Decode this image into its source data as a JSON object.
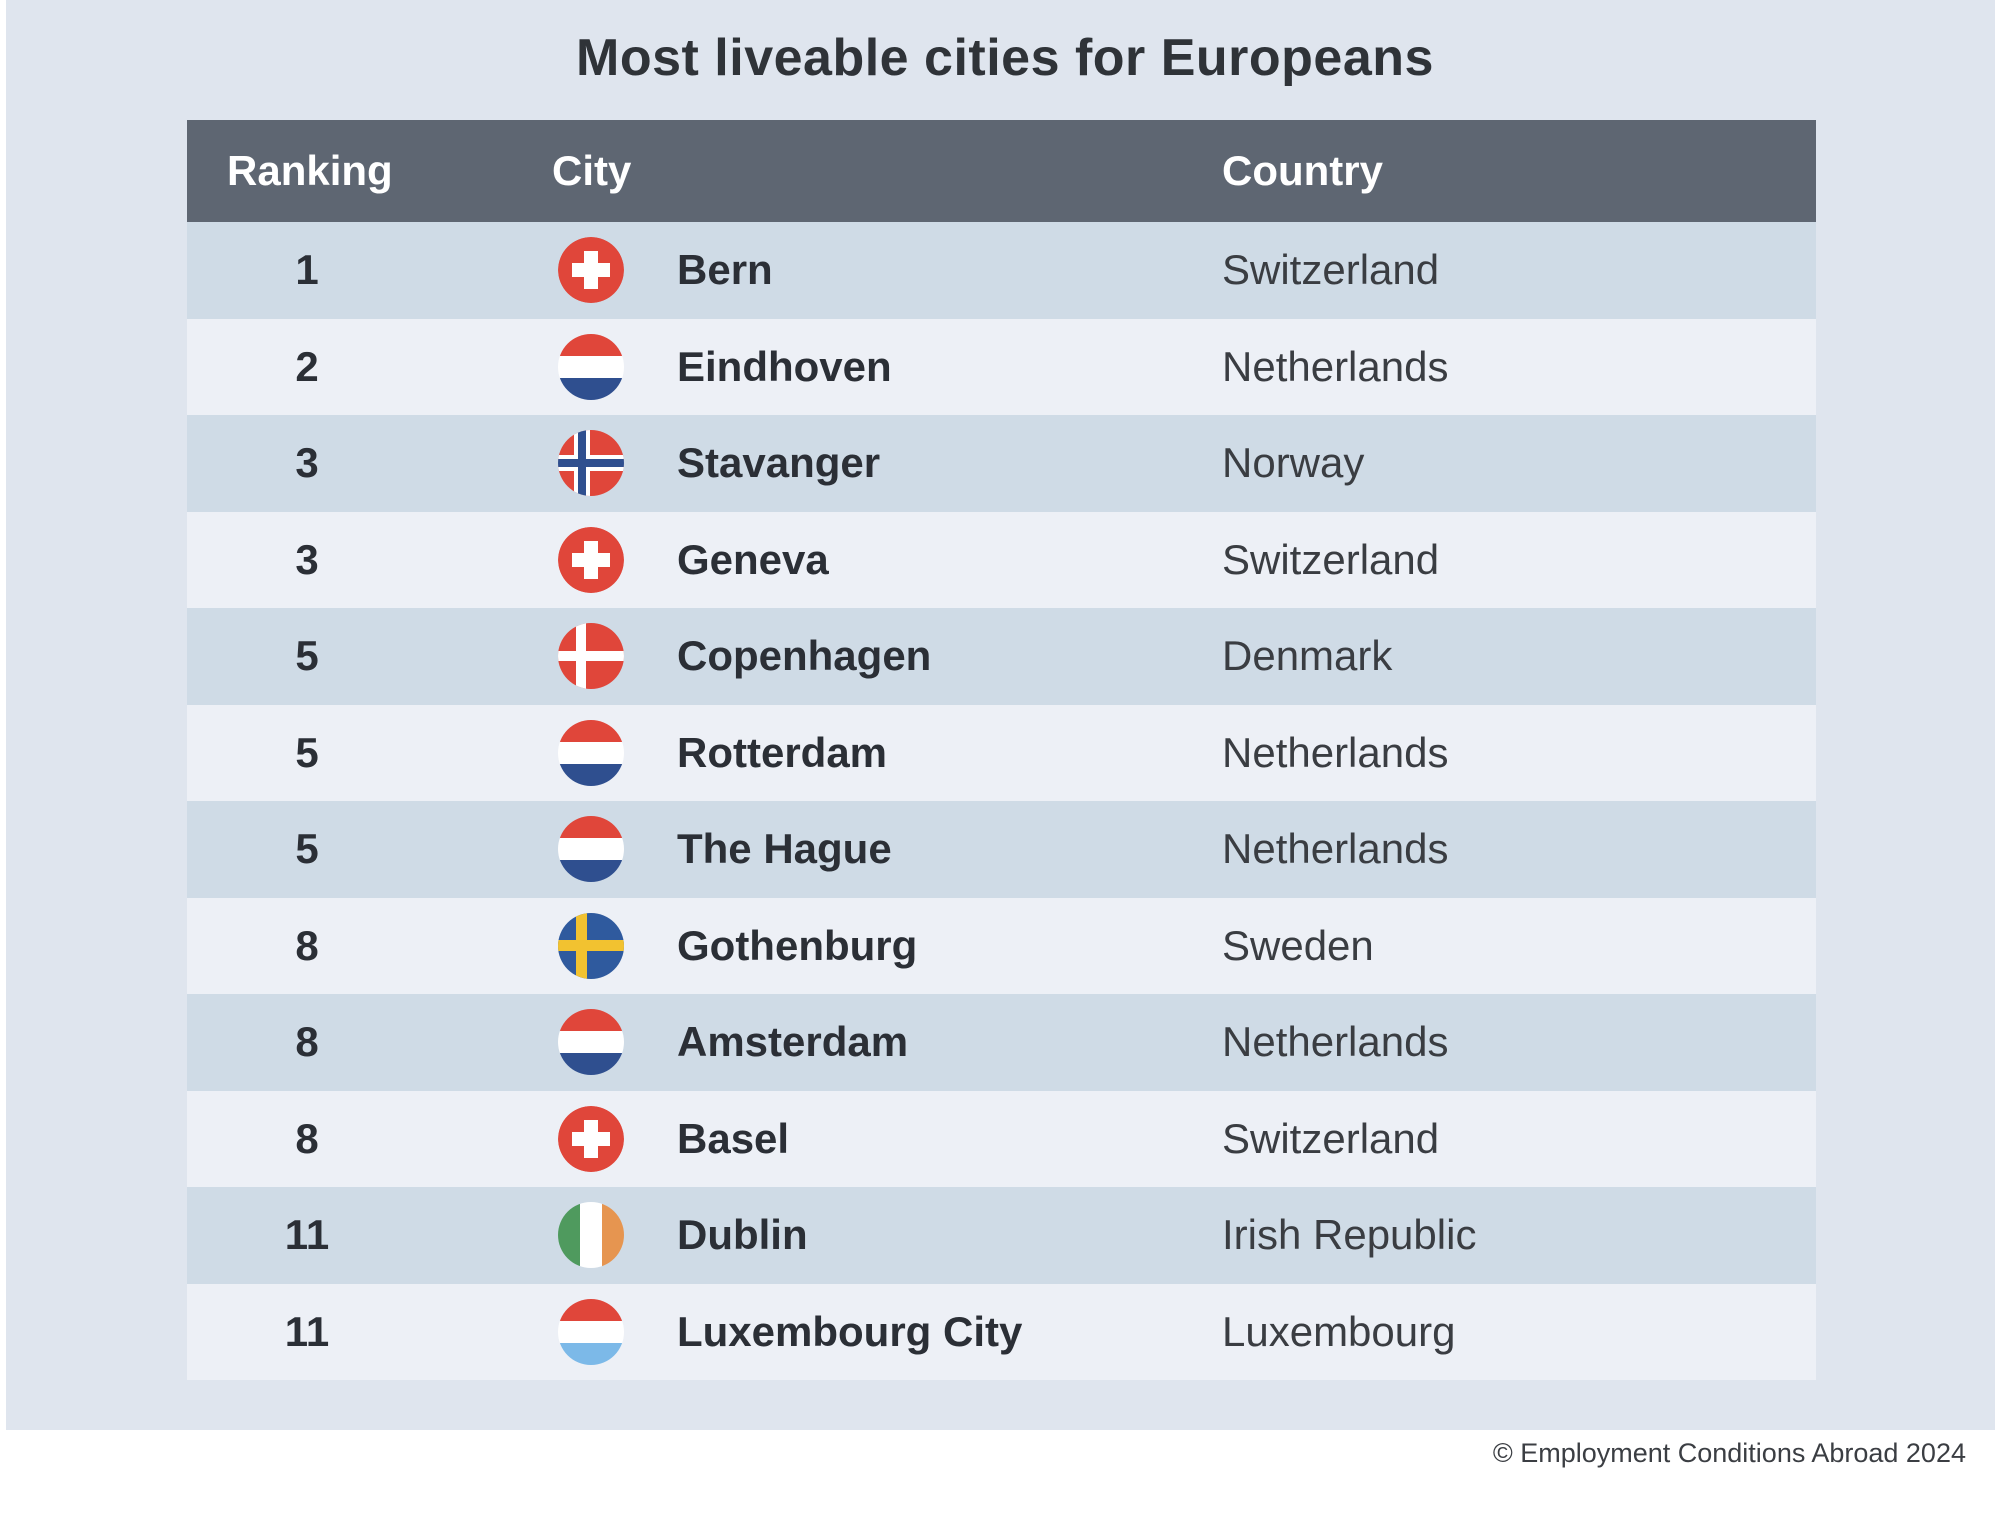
{
  "chart_data": {
    "type": "table",
    "title": "Most liveable cities for Europeans",
    "columns": [
      "Ranking",
      "City",
      "Country"
    ],
    "rows": [
      {
        "rank": "1",
        "city": "Bern",
        "country": "Switzerland",
        "flag": "switzerland-flag-icon"
      },
      {
        "rank": "2",
        "city": "Eindhoven",
        "country": "Netherlands",
        "flag": "netherlands-flag-icon"
      },
      {
        "rank": "3",
        "city": "Stavanger",
        "country": "Norway",
        "flag": "norway-flag-icon"
      },
      {
        "rank": "3",
        "city": "Geneva",
        "country": "Switzerland",
        "flag": "switzerland-flag-icon"
      },
      {
        "rank": "5",
        "city": "Copenhagen",
        "country": "Denmark",
        "flag": "denmark-flag-icon"
      },
      {
        "rank": "5",
        "city": "Rotterdam",
        "country": "Netherlands",
        "flag": "netherlands-flag-icon"
      },
      {
        "rank": "5",
        "city": "The Hague",
        "country": "Netherlands",
        "flag": "netherlands-flag-icon"
      },
      {
        "rank": "8",
        "city": "Gothenburg",
        "country": "Sweden",
        "flag": "sweden-flag-icon"
      },
      {
        "rank": "8",
        "city": "Amsterdam",
        "country": "Netherlands",
        "flag": "netherlands-flag-icon"
      },
      {
        "rank": "8",
        "city": "Basel",
        "country": "Switzerland",
        "flag": "switzerland-flag-icon"
      },
      {
        "rank": "11",
        "city": "Dublin",
        "country": "Irish Republic",
        "flag": "ireland-flag-icon"
      },
      {
        "rank": "11",
        "city": "Luxembourg City",
        "country": "Luxembourg",
        "flag": "luxembourg-flag-icon"
      }
    ],
    "footer": "© Employment Conditions Abroad 2024"
  },
  "colors": {
    "background_panel": "#dfe5ee",
    "header_bar": "#5e6672",
    "row_odd": "#cfdbe6",
    "row_even": "#edf0f6"
  }
}
